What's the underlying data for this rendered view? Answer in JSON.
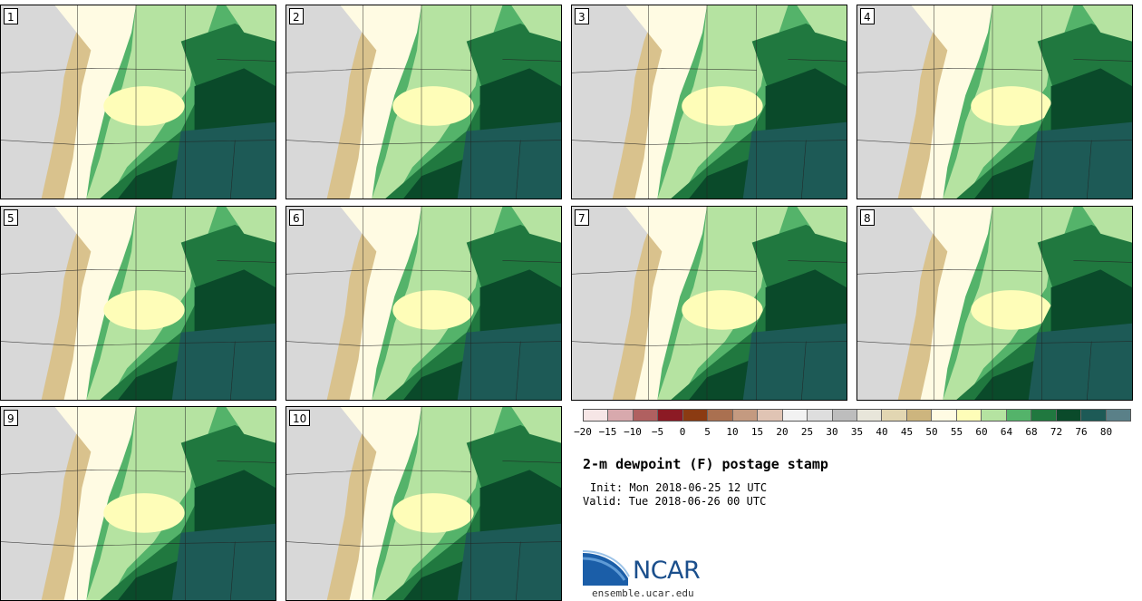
{
  "members": [
    {
      "label": "1"
    },
    {
      "label": "2"
    },
    {
      "label": "3"
    },
    {
      "label": "4"
    },
    {
      "label": "5"
    },
    {
      "label": "6"
    },
    {
      "label": "7"
    },
    {
      "label": "8"
    },
    {
      "label": "9"
    },
    {
      "label": "10"
    }
  ],
  "colorbar": {
    "tick_labels": [
      "−20",
      "−15",
      "−10",
      "−5",
      "0",
      "5",
      "10",
      "15",
      "20",
      "25",
      "30",
      "35",
      "40",
      "45",
      "50",
      "55",
      "60",
      "64",
      "68",
      "72",
      "76",
      "80"
    ],
    "colors": [
      "#f6e6e6",
      "#d8a9ad",
      "#b06060",
      "#8c1a24",
      "#8b3b12",
      "#aa7050",
      "#c49a80",
      "#e0c4b4",
      "#f2f2f2",
      "#dedede",
      "#bdbdbd",
      "#e8e6da",
      "#e2d6b2",
      "#cdb57e",
      "#fffbe3",
      "#fefdb8",
      "#b5e3a1",
      "#54b36a",
      "#20783f",
      "#0a4a2a",
      "#1d5a56",
      "#5a8088"
    ]
  },
  "map_colors": {
    "dry_gray": "#d8d8d8",
    "tan": "#d9c28d",
    "cream": "#fffbe3",
    "pale_yellow": "#fefdb8",
    "light_green": "#b5e3a1",
    "mid_green": "#54b36a",
    "dark_green": "#20783f",
    "darker_green": "#0a4a2a",
    "teal": "#1d5a56"
  },
  "title": "2-m dewpoint (F) postage stamp",
  "init": "Init: Mon 2018-06-25 12 UTC",
  "valid": "Valid: Tue 2018-06-26 00 UTC",
  "logo": {
    "text": "NCAR",
    "url_text": "ensemble.ucar.edu"
  }
}
